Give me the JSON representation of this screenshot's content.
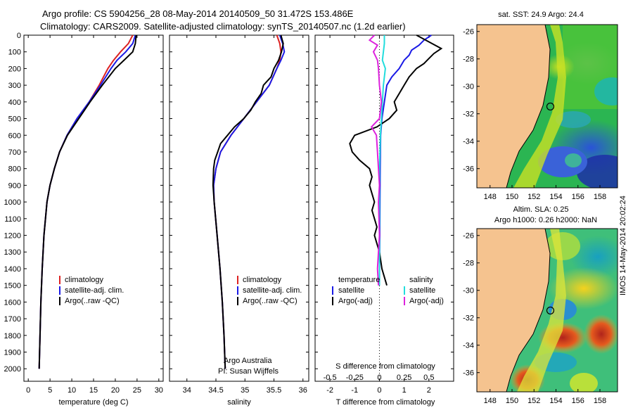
{
  "title": {
    "line1": "Argo profile: CS 5904256_28 08-May-2014 20140509_50 31.472S 153.486E",
    "line2": "Climatology: CARS2009. Satellite-adjusted climatology: synTS_20140507.nc (1.2d earlier)"
  },
  "colors": {
    "climatology": "#dd2222",
    "satellite": "#1a1ae6",
    "argo": "#000000",
    "sat_salinity": "#22dddd",
    "argo_salinity": "#dd22dd",
    "land": "#f5c38f"
  },
  "sst_map": {
    "title": "sat. SST: 24.9 Argo: 24.4",
    "xticks": [
      "148",
      "150",
      "152",
      "154",
      "156",
      "158"
    ],
    "yticks": [
      "-26",
      "-28",
      "-30",
      "-32",
      "-34",
      "-36"
    ]
  },
  "sla_map": {
    "title1": "Altim. SLA: 0.25",
    "title2": "Argo h1000: 0.26 h2000: NaN",
    "xticks": [
      "148",
      "150",
      "152",
      "154",
      "156",
      "158"
    ],
    "yticks": [
      "-26",
      "-28",
      "-30",
      "-32",
      "-34",
      "-36"
    ]
  },
  "side_note": "IMOS 14-May-2014 20:02:24",
  "float_location": {
    "lon": 153.486,
    "lat": -31.472
  },
  "chart_data": [
    {
      "type": "line",
      "name": "temperature-profile",
      "xlabel": "temperature (deg C)",
      "ylabel": "",
      "xlim": [
        -1,
        31
      ],
      "ylim": [
        2075,
        0
      ],
      "xticks": [
        "0",
        "5",
        "10",
        "15",
        "20",
        "25",
        "30"
      ],
      "yticks": [
        "0",
        "100",
        "200",
        "300",
        "400",
        "500",
        "600",
        "700",
        "800",
        "900",
        "1000",
        "1100",
        "1200",
        "1300",
        "1400",
        "1500",
        "1600",
        "1700",
        "1800",
        "1900",
        "2000"
      ],
      "legend": [
        "climatology",
        "satellite-adj. clim.",
        "Argo(..raw -QC)"
      ],
      "series": [
        {
          "name": "climatology",
          "color": "#dd2222",
          "depth": [
            0,
            50,
            100,
            150,
            200,
            300,
            400,
            500,
            600,
            700,
            800,
            900,
            1000,
            1200,
            1400,
            1600,
            1800,
            2000
          ],
          "values": [
            24.0,
            23.0,
            21.2,
            19.6,
            18.3,
            16.3,
            14.0,
            11.2,
            8.9,
            7.2,
            6.0,
            5.0,
            4.3,
            3.6,
            3.2,
            2.9,
            2.7,
            2.5
          ]
        },
        {
          "name": "satellite-adj. clim.",
          "color": "#1a1ae6",
          "depth": [
            0,
            50,
            100,
            150,
            200,
            300,
            400,
            500,
            600,
            700,
            800,
            900,
            1000,
            1200,
            1400,
            1600,
            1800,
            2000
          ],
          "values": [
            24.6,
            24.0,
            22.4,
            20.4,
            19.0,
            16.6,
            14.0,
            11.2,
            8.9,
            7.2,
            6.0,
            5.0,
            4.3,
            3.6,
            3.2,
            2.9,
            2.7,
            2.5
          ]
        },
        {
          "name": "Argo(..raw -QC)",
          "color": "#000000",
          "depth": [
            0,
            50,
            100,
            150,
            200,
            300,
            400,
            500,
            600,
            700,
            800,
            900,
            1000,
            1200,
            1400,
            1600,
            1800,
            2000
          ],
          "values": [
            24.8,
            24.6,
            24.0,
            22.0,
            20.0,
            17.0,
            14.2,
            11.6,
            9.0,
            7.2,
            6.0,
            5.0,
            4.3,
            3.6,
            3.2,
            2.9,
            2.7,
            2.5
          ]
        }
      ]
    },
    {
      "type": "line",
      "name": "salinity-profile",
      "xlabel": "salinity",
      "ylabel": "",
      "xlim": [
        33.7,
        36.1
      ],
      "ylim": [
        2075,
        0
      ],
      "xticks": [
        "34",
        "34.5",
        "35",
        "35.5",
        "36"
      ],
      "legend": [
        "climatology",
        "satellite-adj. clim.",
        "Argo(..raw -QC)"
      ],
      "annotation": [
        "Argo Australia",
        "PI: Susan Wijffels"
      ],
      "series": [
        {
          "name": "climatology",
          "color": "#dd2222",
          "depth": [
            0,
            50,
            100,
            150,
            200,
            300,
            400,
            500,
            600,
            700,
            800,
            900,
            1000,
            1200,
            1400,
            1600,
            1800,
            2000
          ],
          "values": [
            35.55,
            35.6,
            35.62,
            35.6,
            35.55,
            35.42,
            35.2,
            34.98,
            34.76,
            34.58,
            34.5,
            34.46,
            34.47,
            34.52,
            34.57,
            34.61,
            34.64,
            34.66
          ]
        },
        {
          "name": "satellite-adj. clim.",
          "color": "#1a1ae6",
          "depth": [
            0,
            50,
            100,
            150,
            200,
            300,
            400,
            500,
            600,
            700,
            800,
            900,
            1000,
            1200,
            1400,
            1600,
            1800,
            2000
          ],
          "values": [
            35.6,
            35.65,
            35.68,
            35.62,
            35.55,
            35.42,
            35.2,
            34.98,
            34.76,
            34.58,
            34.5,
            34.46,
            34.47,
            34.52,
            34.57,
            34.61,
            34.64,
            34.66
          ]
        },
        {
          "name": "Argo(..raw -QC)",
          "color": "#000000",
          "depth": [
            0,
            50,
            100,
            150,
            200,
            250,
            300,
            350,
            400,
            450,
            500,
            550,
            600,
            650,
            700,
            750,
            800,
            900,
            1000,
            1200,
            1400,
            1600,
            1800,
            2000
          ],
          "values": [
            35.62,
            35.66,
            35.63,
            35.58,
            35.5,
            35.45,
            35.32,
            35.28,
            35.18,
            35.1,
            34.98,
            34.82,
            34.7,
            34.58,
            34.53,
            34.48,
            34.46,
            34.45,
            34.47,
            34.52,
            34.57,
            34.61,
            34.64,
            34.66
          ]
        }
      ]
    },
    {
      "type": "line",
      "name": "difference-profile",
      "xlabel": "T difference from climatology",
      "xlabel2": "S difference from climatology",
      "xlim": [
        -2.6,
        3.0
      ],
      "ylim": [
        2075,
        0
      ],
      "xticks": [
        "-2",
        "-1",
        "0",
        "1",
        "2"
      ],
      "xticks_s": [
        "-0.5",
        "-0.25",
        "0",
        "0.25",
        "0.5"
      ],
      "legend_t": {
        "heading": "temperature",
        "items": [
          "satellite",
          "Argo(-adj)"
        ]
      },
      "legend_s": {
        "heading": "salinity",
        "items": [
          "satellite",
          "Argo(-adj)"
        ]
      },
      "series": [
        {
          "name": "T satellite",
          "color": "#1a1ae6",
          "depth": [
            0,
            30,
            60,
            90,
            120,
            150,
            200,
            250,
            300,
            400,
            500,
            600,
            800,
            1000,
            1500
          ],
          "values": [
            2.1,
            1.8,
            1.6,
            1.3,
            1.2,
            1.0,
            0.8,
            0.5,
            0.3,
            0.2,
            0.1,
            0.05,
            0.03,
            0.02,
            0.0
          ]
        },
        {
          "name": "T Argo(-adj)",
          "color": "#000000",
          "depth": [
            0,
            40,
            80,
            110,
            140,
            170,
            200,
            250,
            300,
            350,
            400,
            450,
            500,
            550,
            600,
            650,
            700,
            750,
            800,
            850,
            900,
            950,
            1000,
            1050,
            1100,
            1150,
            1200,
            1250,
            1300,
            1400,
            1450,
            1500
          ],
          "values": [
            1.5,
            2.0,
            2.5,
            2.2,
            2.0,
            1.8,
            1.5,
            1.2,
            1.0,
            0.8,
            0.6,
            0.7,
            0.4,
            -0.1,
            -1.0,
            -1.2,
            -1.1,
            -0.8,
            -0.4,
            -0.3,
            -0.4,
            -0.3,
            -0.2,
            -0.3,
            -0.2,
            -0.1,
            -0.2,
            -0.1,
            0.0,
            0.1,
            0.2,
            0.3
          ]
        },
        {
          "name": "S satellite",
          "color": "#22dddd",
          "depth": [
            0,
            50,
            100,
            150,
            200,
            300,
            400,
            500,
            600,
            800,
            1000,
            1500
          ],
          "values": [
            0.05,
            0.05,
            0.04,
            0.03,
            0.06,
            0.04,
            0.03,
            0.02,
            0.01,
            0.0,
            0.0,
            0.0
          ]
        },
        {
          "name": "S Argo(-adj)",
          "color": "#dd22dd",
          "depth": [
            0,
            30,
            60,
            100,
            150,
            200,
            300,
            400,
            500,
            550,
            600,
            700,
            800,
            900,
            1000,
            1200,
            1400,
            1500
          ],
          "values": [
            -0.05,
            -0.1,
            -0.02,
            -0.06,
            -0.02,
            -0.01,
            0.0,
            0.02,
            0.0,
            -0.08,
            -0.03,
            -0.02,
            -0.01,
            0.0,
            -0.01,
            0.0,
            -0.02,
            -0.01
          ]
        }
      ]
    }
  ]
}
